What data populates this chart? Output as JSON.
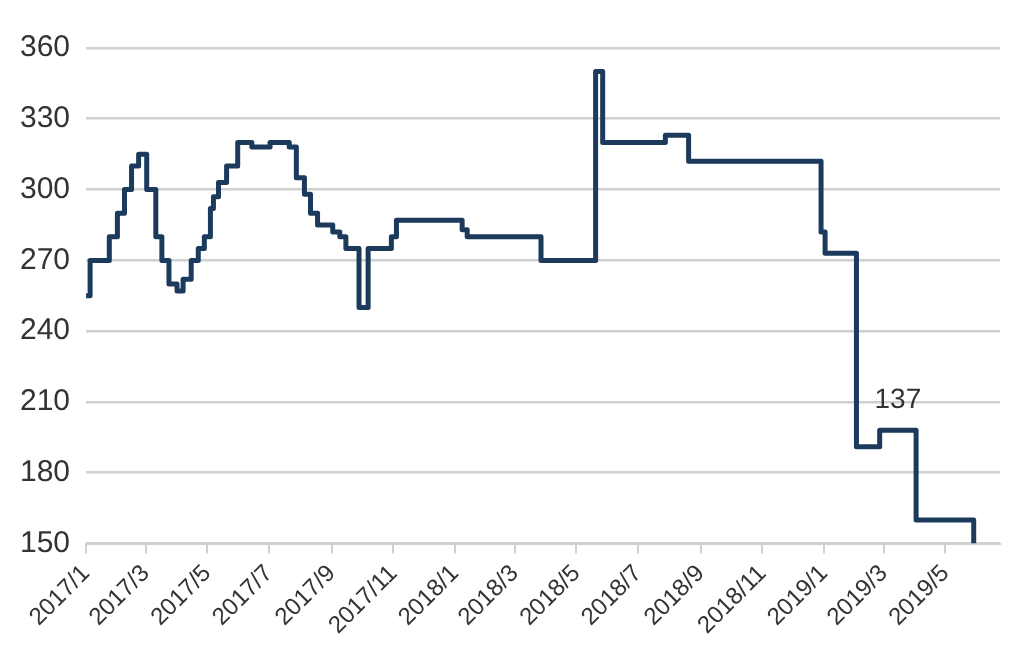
{
  "chart_data": {
    "type": "step",
    "x": [
      "2017-01-01",
      "2017-01-05",
      "2017-01-24",
      "2017-02-01",
      "2017-02-08",
      "2017-02-15",
      "2017-02-22",
      "2017-03-02",
      "2017-03-11",
      "2017-03-17",
      "2017-03-24",
      "2017-04-01",
      "2017-04-07",
      "2017-04-15",
      "2017-04-22",
      "2017-04-28",
      "2017-05-04",
      "2017-05-07",
      "2017-05-12",
      "2017-05-20",
      "2017-05-31",
      "2017-06-14",
      "2017-07-02",
      "2017-07-21",
      "2017-07-28",
      "2017-08-05",
      "2017-08-11",
      "2017-08-18",
      "2017-09-02",
      "2017-09-09",
      "2017-09-15",
      "2017-09-28",
      "2017-10-07",
      "2017-10-30",
      "2017-11-04",
      "2018-01-08",
      "2018-01-13",
      "2018-03-27",
      "2018-05-20",
      "2018-05-27",
      "2018-07-28",
      "2018-08-20",
      "2018-12-29",
      "2019-01-02",
      "2019-02-02",
      "2019-02-25",
      "2019-04-02",
      "2019-05-29"
    ],
    "series": [
      {
        "color": "#1b3a5c",
        "values": [
          255,
          270,
          280,
          290,
          300,
          310,
          315,
          300,
          280,
          270,
          260,
          257,
          262,
          270,
          275,
          280,
          292,
          297,
          303,
          310,
          320,
          318,
          320,
          318,
          305,
          298,
          290,
          285,
          282,
          280,
          275,
          250,
          275,
          280,
          287,
          283,
          280,
          270,
          350,
          320,
          323,
          312,
          282,
          273,
          191,
          198,
          160,
          150
        ]
      }
    ],
    "xlim": [
      "2017-01-01",
      "2019-06-24"
    ],
    "xticks": [
      {
        "value": "2017-01-01",
        "label": "2017/1"
      },
      {
        "value": "2017-03-01",
        "label": "2017/3"
      },
      {
        "value": "2017-05-01",
        "label": "2017/5"
      },
      {
        "value": "2017-07-01",
        "label": "2017/7"
      },
      {
        "value": "2017-09-01",
        "label": "2017/9"
      },
      {
        "value": "2017-11-01",
        "label": "2017/11"
      },
      {
        "value": "2018-01-01",
        "label": "2018/1"
      },
      {
        "value": "2018-03-01",
        "label": "2018/3"
      },
      {
        "value": "2018-05-01",
        "label": "2018/5"
      },
      {
        "value": "2018-07-01",
        "label": "2018/7"
      },
      {
        "value": "2018-09-01",
        "label": "2018/9"
      },
      {
        "value": "2018-11-01",
        "label": "2018/11"
      },
      {
        "value": "2019-01-01",
        "label": "2019/1"
      },
      {
        "value": "2019-03-01",
        "label": "2019/3"
      },
      {
        "value": "2019-05-01",
        "label": "2019/5"
      }
    ],
    "ylim": [
      150,
      360
    ],
    "yticks": [
      150,
      180,
      210,
      240,
      270,
      300,
      330,
      360
    ],
    "annotations": [
      {
        "text": "137",
        "x": "2019-03-15",
        "y": 198
      }
    ],
    "grid": "y",
    "legend": false,
    "marker": "none",
    "line_style": "solid"
  }
}
